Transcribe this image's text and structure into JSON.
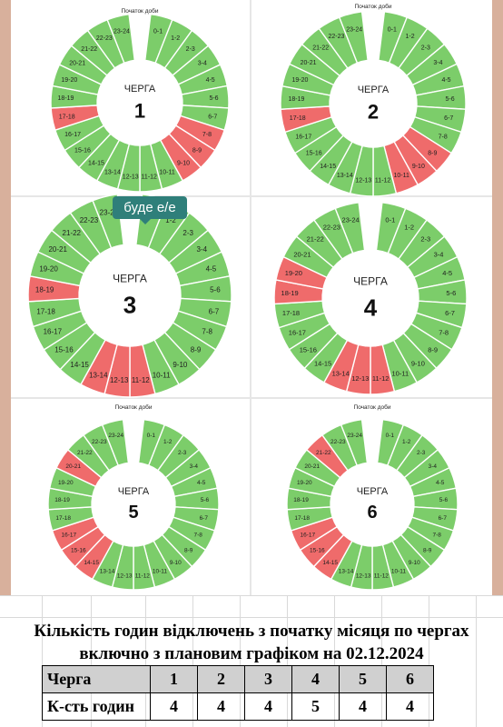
{
  "schedules": [
    {
      "start_label": "Початок доби",
      "queue_word": "ЧЕРГА",
      "number": "1",
      "hours": [
        "0-1",
        "1-2",
        "2-3",
        "3-4",
        "4-5",
        "5-6",
        "6-7",
        "7-8",
        "8-9",
        "9-10",
        "10-11",
        "11-12",
        "12-13",
        "13-14",
        "14-15",
        "15-16",
        "16-17",
        "17-18",
        "18-19",
        "19-20",
        "20-21",
        "21-22",
        "22-23",
        "23-24"
      ],
      "off": [
        7,
        8,
        9,
        17
      ]
    },
    {
      "start_label": "Початок доби",
      "queue_word": "ЧЕРГА",
      "number": "2",
      "hours": [
        "0-1",
        "1-2",
        "2-3",
        "3-4",
        "4-5",
        "5-6",
        "6-7",
        "7-8",
        "8-9",
        "9-10",
        "10-11",
        "11-12",
        "12-13",
        "13-14",
        "14-15",
        "15-16",
        "16-17",
        "17-18",
        "18-19",
        "19-20",
        "20-21",
        "21-22",
        "22-23",
        "23-24"
      ],
      "off": [
        8,
        9,
        10,
        17
      ]
    },
    {
      "start_label": "",
      "queue_word": "ЧЕРГА",
      "number": "3",
      "hours": [
        "0-1",
        "1-2",
        "2-3",
        "3-4",
        "4-5",
        "5-6",
        "6-7",
        "7-8",
        "8-9",
        "9-10",
        "10-11",
        "11-12",
        "12-13",
        "13-14",
        "14-15",
        "15-16",
        "16-17",
        "17-18",
        "18-19",
        "19-20",
        "20-21",
        "21-22",
        "22-23",
        "23-24"
      ],
      "off": [
        11,
        12,
        13,
        18
      ]
    },
    {
      "start_label": "",
      "queue_word": "ЧЕРГА",
      "number": "4",
      "hours": [
        "0-1",
        "1-2",
        "2-3",
        "3-4",
        "4-5",
        "5-6",
        "6-7",
        "7-8",
        "8-9",
        "9-10",
        "10-11",
        "11-12",
        "12-13",
        "13-14",
        "14-15",
        "15-16",
        "16-17",
        "17-18",
        "18-19",
        "19-20",
        "20-21",
        "21-22",
        "22-23",
        "23-24"
      ],
      "off": [
        11,
        12,
        13,
        18,
        19
      ]
    },
    {
      "start_label": "Початок доби",
      "queue_word": "ЧЕРГА",
      "number": "5",
      "hours": [
        "0-1",
        "1-2",
        "2-3",
        "3-4",
        "4-5",
        "5-6",
        "6-7",
        "7-8",
        "8-9",
        "9-10",
        "10-11",
        "11-12",
        "12-13",
        "13-14",
        "14-15",
        "15-16",
        "16-17",
        "17-18",
        "18-19",
        "19-20",
        "20-21",
        "21-22",
        "22-23",
        "23-24"
      ],
      "off": [
        14,
        15,
        16,
        20
      ]
    },
    {
      "start_label": "Початок доби",
      "queue_word": "ЧЕРГА",
      "number": "6",
      "hours": [
        "0-1",
        "1-2",
        "2-3",
        "3-4",
        "4-5",
        "5-6",
        "6-7",
        "7-8",
        "8-9",
        "9-10",
        "10-11",
        "11-12",
        "12-13",
        "13-14",
        "14-15",
        "15-16",
        "16-17",
        "17-18",
        "18-19",
        "19-20",
        "20-21",
        "21-22",
        "22-23",
        "23-24"
      ],
      "off": [
        14,
        15,
        16,
        21
      ]
    }
  ],
  "tooltip": "буде е/е",
  "colors": {
    "on": "#7ccd6a",
    "off": "#ef6b6b",
    "separator": "#ffffff"
  },
  "summary": {
    "title_line1": "Кількість годин відключень з початку місяця по чергах",
    "title_line2": "включно з плановим графіком на 02.12.2024",
    "row_header_label": "Черга",
    "row_value_label": "К-сть годин",
    "queues": [
      "1",
      "2",
      "3",
      "4",
      "5",
      "6"
    ],
    "hours": [
      "4",
      "4",
      "4",
      "5",
      "4",
      "4"
    ]
  }
}
